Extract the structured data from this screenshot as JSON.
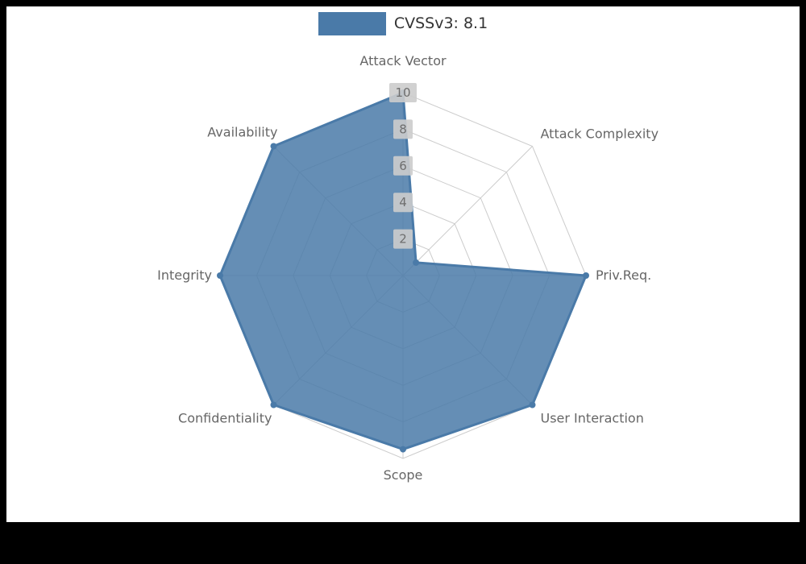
{
  "page": {
    "background": "#000000",
    "canvas_background": "#ffffff"
  },
  "legend": {
    "label": "CVSSv3: 8.1",
    "color": "#4a7aa8"
  },
  "chart_data": {
    "type": "radar",
    "title": "CVSSv3: 8.1",
    "categories": [
      "Attack Vector",
      "Attack Complexity",
      "Priv.Req.",
      "User Interaction",
      "Scope",
      "Confidentiality",
      "Integrity",
      "Availability"
    ],
    "series": [
      {
        "name": "CVSSv3: 8.1",
        "values": [
          10,
          1,
          10,
          10,
          9.5,
          10,
          10,
          10
        ]
      }
    ],
    "rmin": 0,
    "rmax": 10,
    "ticks": [
      2,
      4,
      6,
      8,
      10
    ],
    "grid": true,
    "grid_shape": "polygon",
    "legend_position": "top",
    "colors": {
      "fill": "#4a7aa8",
      "fill_opacity": 0.85,
      "stroke": "#4a7aa8",
      "point": "#4a7aa8",
      "grid": "#cccccc",
      "axis_label": "#666666",
      "tick_text": "#6e6e6e",
      "tick_backdrop": "#cccccc"
    }
  }
}
